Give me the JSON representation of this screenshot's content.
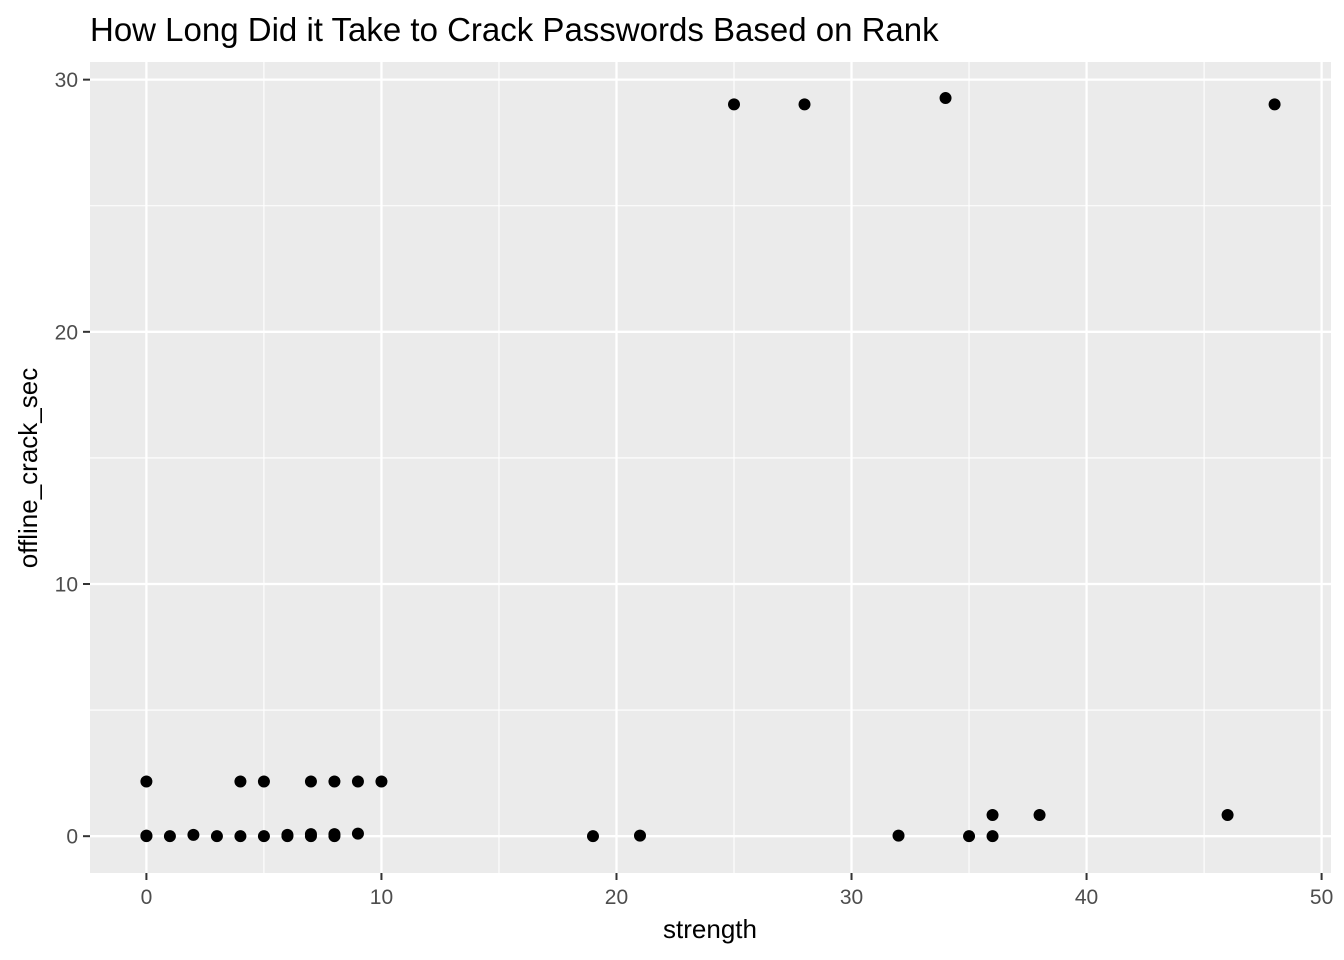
{
  "chart_data": {
    "type": "scatter",
    "title": "How Long Did it Take to Crack Passwords Based on Rank",
    "xlabel": "strength",
    "ylabel": "offline_crack_sec",
    "xlim": [
      -2.4,
      50.4
    ],
    "ylim": [
      -1.46,
      30.7
    ],
    "x_ticks": [
      0,
      10,
      20,
      30,
      40,
      50
    ],
    "x_tick_labels": [
      "0",
      "10",
      "20",
      "30",
      "40",
      "50"
    ],
    "y_ticks": [
      0,
      10,
      20,
      30
    ],
    "y_tick_labels": [
      "0",
      "10",
      "20",
      "30"
    ],
    "grid": true,
    "colors": {
      "panel": "#ebebeb",
      "grid": "#ffffff",
      "point": "#000000",
      "tick_text": "#4d4d4d"
    },
    "points": [
      {
        "x": 0,
        "y": 2.17
      },
      {
        "x": 0,
        "y": 0.0
      },
      {
        "x": 0,
        "y": 0.02
      },
      {
        "x": 1,
        "y": 0.0
      },
      {
        "x": 2,
        "y": 0.05
      },
      {
        "x": 3,
        "y": 0.0
      },
      {
        "x": 4,
        "y": 2.17
      },
      {
        "x": 4,
        "y": 0.0
      },
      {
        "x": 5,
        "y": 2.17
      },
      {
        "x": 5,
        "y": 0.0
      },
      {
        "x": 6,
        "y": 0.0
      },
      {
        "x": 6,
        "y": 0.05
      },
      {
        "x": 7,
        "y": 2.17
      },
      {
        "x": 7,
        "y": 0.0
      },
      {
        "x": 7,
        "y": 0.08
      },
      {
        "x": 8,
        "y": 2.17
      },
      {
        "x": 8,
        "y": 0.0
      },
      {
        "x": 8,
        "y": 0.08
      },
      {
        "x": 9,
        "y": 2.17
      },
      {
        "x": 9,
        "y": 0.1
      },
      {
        "x": 10,
        "y": 2.17
      },
      {
        "x": 19,
        "y": 0.0
      },
      {
        "x": 21,
        "y": 0.02
      },
      {
        "x": 25,
        "y": 29.02
      },
      {
        "x": 28,
        "y": 29.02
      },
      {
        "x": 34,
        "y": 29.27
      },
      {
        "x": 48,
        "y": 29.02
      },
      {
        "x": 32,
        "y": 0.02
      },
      {
        "x": 35,
        "y": 0.0
      },
      {
        "x": 36,
        "y": 0.84
      },
      {
        "x": 36,
        "y": 0.0
      },
      {
        "x": 38,
        "y": 0.84
      },
      {
        "x": 46,
        "y": 0.84
      }
    ]
  }
}
